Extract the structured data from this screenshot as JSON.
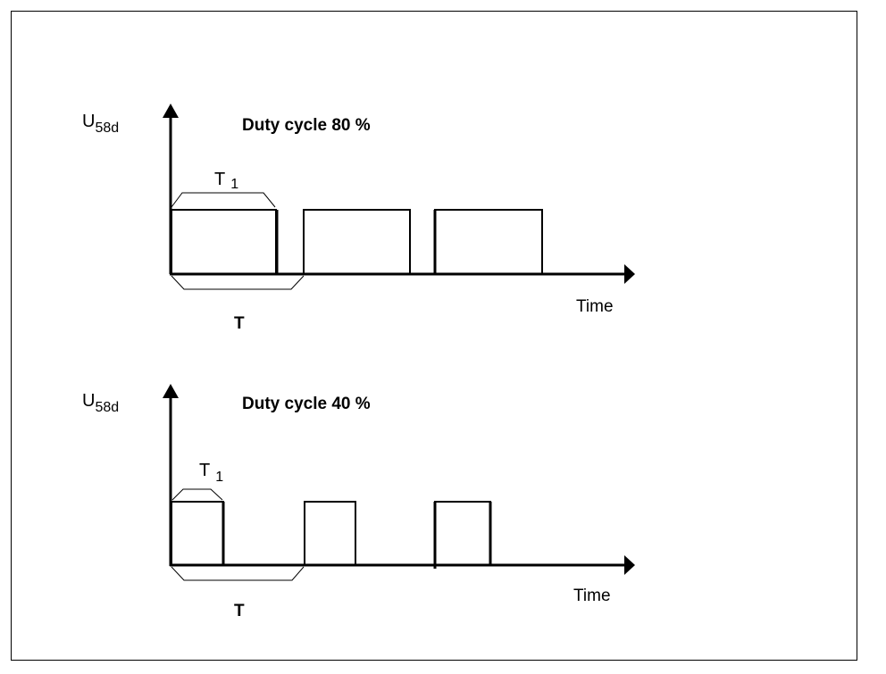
{
  "diagram": {
    "frame_color": "#000000",
    "line_color": "#000000",
    "panels": [
      {
        "id": "top",
        "title": "Duty cycle 80 %",
        "duty_cycle_percent": 80,
        "y_symbol": "U",
        "y_subscript": "58d",
        "x_label": "Time",
        "pulse_width_label": "T",
        "pulse_width_subscript": "1",
        "period_label": "T",
        "pulse_count": 3
      },
      {
        "id": "bottom",
        "title": "Duty cycle 40 %",
        "duty_cycle_percent": 40,
        "y_symbol": "U",
        "y_subscript": "58d",
        "x_label": "Time",
        "pulse_width_label": "T",
        "pulse_width_subscript": "1",
        "period_label": "T",
        "pulse_count": 3
      }
    ]
  }
}
